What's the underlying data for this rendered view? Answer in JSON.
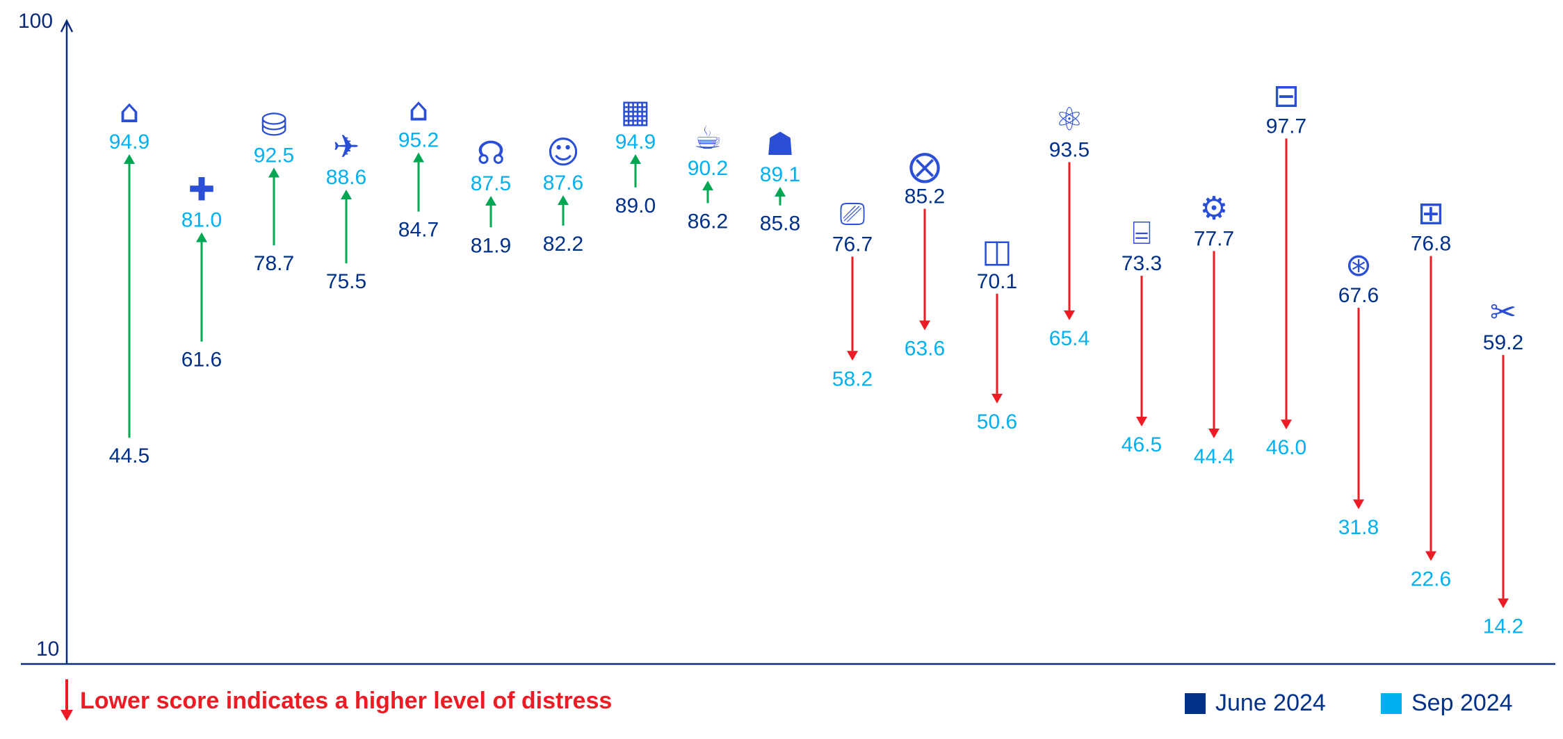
{
  "chart_data": {
    "type": "arrow-dumbbell",
    "title": "",
    "xlabel": "",
    "ylabel": "",
    "ylim": [
      10,
      100
    ],
    "yticks": [
      "100",
      "10"
    ],
    "grid": false,
    "legend_placement": "bottom-right",
    "note": "Lower score indicates a higher level of distress",
    "series": [
      {
        "name": "June 2024",
        "color": "#003087",
        "values": [
          44.5,
          61.6,
          78.7,
          75.5,
          84.7,
          81.9,
          82.2,
          89.0,
          86.2,
          85.8,
          76.7,
          85.2,
          70.1,
          93.5,
          73.3,
          77.7,
          97.7,
          67.6,
          76.8,
          59.2
        ]
      },
      {
        "name": "Sep 2024",
        "color": "#00b0f0",
        "values": [
          94.9,
          81.0,
          92.5,
          88.6,
          95.2,
          87.5,
          87.6,
          94.9,
          90.2,
          89.1,
          58.2,
          63.6,
          50.6,
          65.4,
          46.5,
          44.4,
          46.0,
          31.8,
          22.6,
          14.2
        ]
      }
    ],
    "categories_icons": [
      "hand-house-icon",
      "hand-medical-icon",
      "hand-coins-icon",
      "airplane-icon",
      "house-icon",
      "headset-icon",
      "people-icon",
      "building-icon",
      "fast-food-icon",
      "construction-worker-icon",
      "video-camera-icon",
      "restaurant-icon",
      "analytics-chart-icon",
      "atom-icon",
      "factory-icon",
      "gear-icon",
      "train-icon",
      "network-icon",
      "hierarchy-icon",
      "tools-icon"
    ],
    "increase_color": "#00a651",
    "decrease_color": "#ed1c24",
    "icon_color": "#2a4fd6"
  }
}
